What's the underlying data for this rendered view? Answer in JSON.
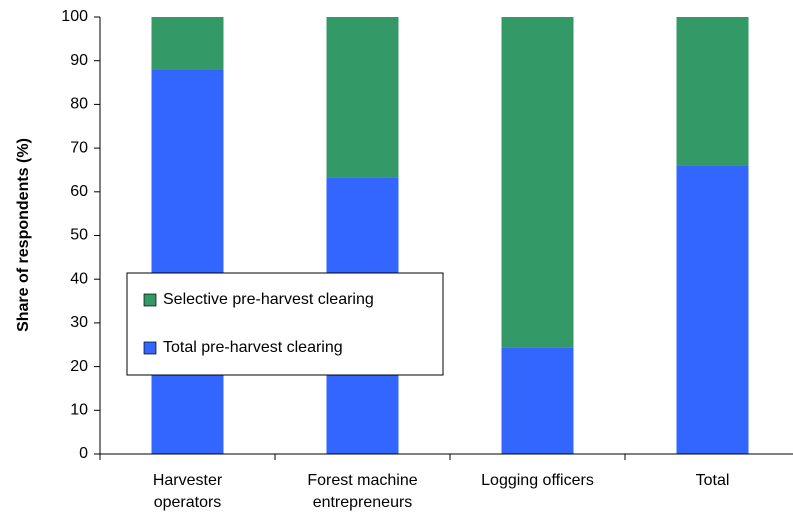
{
  "chart_data": {
    "type": "stacked_bar",
    "y_label": "Share of respondents (%)",
    "categories": [
      "Harvester operators",
      "Forest machine entrepreneurs",
      "Logging officers",
      "Total"
    ],
    "series": [
      {
        "name": "Total pre-harvest clearing",
        "color": "#3366ff",
        "values": [
          88,
          63.3,
          24.4,
          66
        ]
      },
      {
        "name": "Selective pre-harvest clearing",
        "color": "#339966",
        "values": [
          12,
          36.7,
          75.6,
          34
        ]
      }
    ],
    "ylim": [
      0,
      100
    ],
    "yticks": [
      0,
      10,
      20,
      30,
      40,
      50,
      60,
      70,
      80,
      90,
      100
    ],
    "legend": "lower-left"
  }
}
